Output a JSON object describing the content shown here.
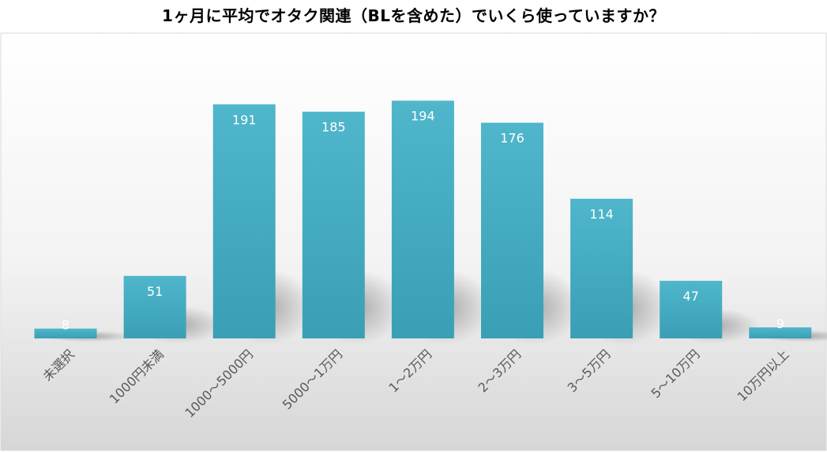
{
  "chart_data": {
    "type": "bar",
    "title": "1ヶ月に平均でオタク関連（BLを含めた）でいくら使っていますか？",
    "categories": [
      "未選択",
      "1000円未満",
      "1000～5000円",
      "5000～1万円",
      "1～2万円",
      "2～3万円",
      "3～5万円",
      "5～10万円",
      "10万円以上"
    ],
    "values": [
      8,
      51,
      191,
      185,
      194,
      176,
      114,
      47,
      9
    ],
    "ylim": [
      0,
      215
    ],
    "grid": false,
    "legend": "none",
    "bar_color": "#46b0c6"
  }
}
